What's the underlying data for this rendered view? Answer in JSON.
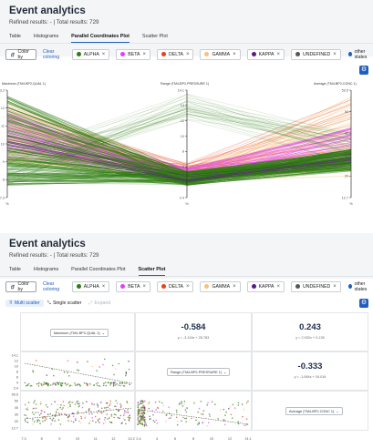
{
  "top": {
    "title": "Event analytics",
    "refined_text": "Refined results: - | Total results: 729",
    "tabs": [
      {
        "label": "Table",
        "active": false
      },
      {
        "label": "Histograms",
        "active": false
      },
      {
        "label": "Parallel Coordinates Plot",
        "active": true
      },
      {
        "label": "Scatter Plot",
        "active": false
      }
    ],
    "color_by_label": "Color by",
    "clear_coloring_label": "Clear coloring",
    "chips": [
      {
        "label": "ALPHA",
        "color": "#2e7d10"
      },
      {
        "label": "BETA",
        "color": "#e040fb"
      },
      {
        "label": "DELTA",
        "color": "#e8401c"
      },
      {
        "label": "GAMMA",
        "color": "#f7c27a"
      },
      {
        "label": "KAPPA",
        "color": "#5b1a86"
      },
      {
        "label": "UNDEFINED",
        "color": "#555555"
      }
    ],
    "other_states_label": "other states",
    "other_states_color": "#1f5fbf",
    "parallel": {
      "axes": [
        {
          "label": "Maximum (TM4-BP2-QUAL 1)",
          "ticks": [
            "13.2",
            "12",
            "11",
            "10",
            "9",
            "8",
            "7.3"
          ],
          "bottom_mark": "%"
        },
        {
          "label": "Range (TM4-BP2-PRESSURE 1)",
          "ticks": [
            "14.1",
            "14",
            "12",
            "10",
            "8",
            "6",
            "4",
            "2.4"
          ],
          "bottom_mark": "%"
        },
        {
          "label": "Average (TM4-BP2-CONC 1)",
          "ticks": [
            "59.5",
            "50",
            "40",
            "30",
            "20",
            "12.7"
          ],
          "bottom_mark": "%"
        }
      ]
    }
  },
  "bottom": {
    "title": "Event analytics",
    "refined_text": "Refined results: - | Total results: 729",
    "tabs": [
      {
        "label": "Table",
        "active": false
      },
      {
        "label": "Histograms",
        "active": false
      },
      {
        "label": "Parallel Coordinates Plot",
        "active": false
      },
      {
        "label": "Scatter Plot",
        "active": true
      }
    ],
    "modes": [
      {
        "label": "Multi scatter",
        "state": "active"
      },
      {
        "label": "Single scatter",
        "state": "normal"
      },
      {
        "label": "Expand",
        "state": "disabled"
      }
    ],
    "selectors": [
      "Maximum (TM4-BP2-QUAL 1)",
      "Range (TM4-BP2-PRESSURE 1)",
      "Average (TM4-BP2-CONC 1)"
    ],
    "correlations": [
      {
        "value": "-0.584",
        "equation": "y = -3.119x + 25.783"
      },
      {
        "value": "0.243",
        "equation": "y = 2.932x + 0.135"
      },
      {
        "value": "-0.333",
        "equation": "y = -1.084x + 34.016"
      }
    ],
    "row1_yticks": [
      "14.1",
      "12",
      "10",
      "8",
      "6",
      "4",
      "2.4"
    ],
    "row2_yticks": [
      "59.5",
      "50",
      "40",
      "30",
      "20",
      "12.7"
    ],
    "xticks_a": [
      "7.3",
      "8",
      "9",
      "10",
      "11",
      "12",
      "13.2"
    ],
    "xticks_b": [
      "2.4",
      "4",
      "6",
      "8",
      "10",
      "12",
      "14.1"
    ]
  }
}
